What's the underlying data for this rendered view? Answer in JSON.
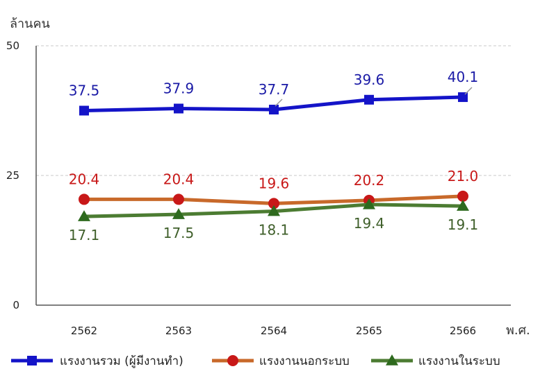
{
  "chart_data": {
    "type": "line",
    "ylabel": "ล้านคน",
    "xlabel": "พ.ศ.",
    "categories": [
      "2562",
      "2563",
      "2564",
      "2565",
      "2566"
    ],
    "ylim": [
      0,
      50
    ],
    "yticks": [
      0,
      25,
      50
    ],
    "grid": true,
    "legend_position": "bottom",
    "series": [
      {
        "name": "แรงงานรวม (ผู้มีงานทำ)",
        "values": [
          37.5,
          37.9,
          37.7,
          39.6,
          40.1
        ],
        "labels": [
          "37.5",
          "37.9",
          "37.7",
          "39.6",
          "40.1"
        ],
        "color": "#1414c8",
        "label_color": "#1a1aa6",
        "marker": "square",
        "label_pos": "above"
      },
      {
        "name": "แรงงานนอกระบบ",
        "values": [
          20.4,
          20.4,
          19.6,
          20.2,
          21.0
        ],
        "labels": [
          "20.4",
          "20.4",
          "19.6",
          "20.2",
          "21.0"
        ],
        "color": "#c8692a",
        "marker_color": "#c81818",
        "label_color": "#c81818",
        "marker": "circle",
        "label_pos": "above"
      },
      {
        "name": "แรงงานในระบบ",
        "values": [
          17.1,
          17.5,
          18.1,
          19.4,
          19.1
        ],
        "labels": [
          "17.1",
          "17.5",
          "18.1",
          "19.4",
          "19.1"
        ],
        "color": "#4c7c32",
        "marker_color": "#2e6a1e",
        "label_color": "#3f5f2a",
        "marker": "triangle",
        "label_pos": "below"
      }
    ]
  }
}
